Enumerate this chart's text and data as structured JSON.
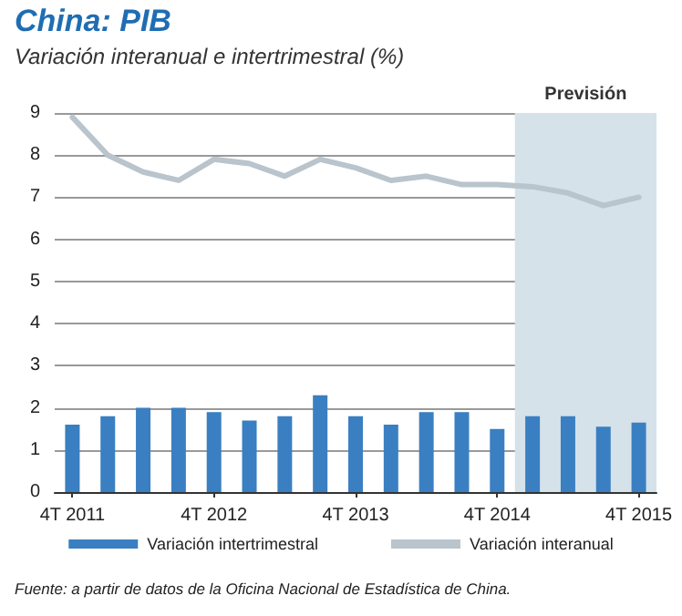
{
  "chart_data": {
    "type": "bar",
    "title": "China: PIB",
    "subtitle": "Variación interanual e intertrimestral (%)",
    "categories": [
      "4T 2011",
      null,
      null,
      null,
      "4T 2012",
      null,
      null,
      null,
      "4T 2013",
      null,
      null,
      null,
      "4T 2014",
      null,
      null,
      null,
      "4T 2015"
    ],
    "series": [
      {
        "name": "Variación intertrimestral",
        "color": "#3a7fc1",
        "values": [
          1.6,
          1.8,
          2.0,
          2.0,
          1.9,
          1.7,
          1.8,
          2.3,
          1.8,
          1.6,
          1.9,
          1.9,
          1.5,
          1.8,
          1.8,
          1.55,
          1.65
        ]
      },
      {
        "name": "Variación interanual",
        "type": "line",
        "color": "#b9c4cc",
        "values": [
          8.9,
          8.0,
          7.6,
          7.4,
          7.9,
          7.8,
          7.5,
          7.9,
          7.7,
          7.4,
          7.5,
          7.3,
          7.3,
          7.25,
          7.1,
          6.8,
          7.0
        ]
      }
    ],
    "ylim": [
      0,
      9
    ],
    "yticks": [
      0,
      1,
      2,
      3,
      4,
      5,
      6,
      7,
      8,
      9
    ],
    "grid": "y",
    "legend": "bottom",
    "marker": "none",
    "line_style": "solid",
    "bands": [
      {
        "axis": "x",
        "from": "4T 2014",
        "to": "4T 2015",
        "label": "Previsión",
        "color": "#d5e2ea"
      }
    ],
    "annotations": [
      "Fuente: a partir de datos de la Oficina Nacional de Estadística de China."
    ]
  }
}
